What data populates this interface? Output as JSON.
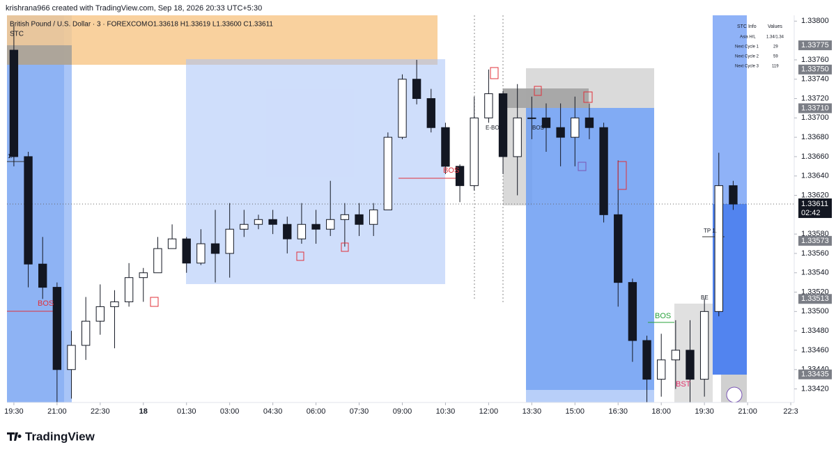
{
  "header": {
    "credit": "krishrana966 created with TradingView.com, Sep 18, 2026 20:33 UTC+5:30",
    "symbol": "British Pound / U.S. Dollar · 3 · FOREXCOM",
    "ohlc": "O1.33618  H1.33619  L1.33600  C1.33611",
    "indicator": "STC"
  },
  "footer": {
    "logo": "TradingView"
  },
  "stc_table": {
    "header": [
      "STC Info",
      "Values"
    ],
    "rows": [
      [
        "Asia H/L",
        "1.34/1.34"
      ],
      [
        "Next Cycle 1",
        29
      ],
      [
        "Next Cycle 2",
        59
      ],
      [
        "Next Cycle 3",
        119
      ]
    ]
  },
  "chart_data": {
    "type": "candlestick",
    "x": [
      19.5,
      20,
      20.5,
      21,
      21.5,
      22,
      22.5,
      23,
      23.5,
      24,
      24.5,
      25,
      25.5,
      26,
      26.5,
      27,
      27.5,
      28,
      28.5,
      29,
      29.5,
      30,
      30.5,
      31,
      31.5,
      32,
      32.5,
      33,
      33.5,
      34,
      34.5,
      35,
      35.5,
      36,
      36.5,
      37,
      37.5,
      38,
      38.5,
      39,
      39.5,
      40,
      40.5,
      41,
      41.5,
      42,
      42.5,
      43,
      43.5,
      44,
      44.5
    ],
    "open": [
      1.3377,
      1.3366,
      1.33549,
      1.33525,
      1.3344,
      1.33465,
      1.3349,
      1.33505,
      1.3351,
      1.33535,
      1.3354,
      1.33565,
      1.33575,
      1.3355,
      1.3357,
      1.3356,
      1.33585,
      1.3359,
      1.33595,
      1.3359,
      1.33575,
      1.3359,
      1.33585,
      1.33595,
      1.336,
      1.3359,
      1.33605,
      1.3368,
      1.3374,
      1.3372,
      1.3369,
      1.3365,
      1.3363,
      1.337,
      1.33725,
      1.3366,
      1.337,
      1.337,
      1.3369,
      1.3368,
      1.337,
      1.3369,
      1.336,
      1.3353,
      1.3347,
      1.3343,
      1.3345,
      1.3346,
      1.3343,
      1.335,
      1.3363
    ],
    "high": [
      1.33795,
      1.33665,
      1.33577,
      1.3353,
      1.3348,
      1.33515,
      1.33528,
      1.33522,
      1.3355,
      1.33545,
      1.33577,
      1.3359,
      1.33577,
      1.33585,
      1.33605,
      1.33612,
      1.33605,
      1.336,
      1.33605,
      1.33598,
      1.33612,
      1.33605,
      1.33635,
      1.33612,
      1.33612,
      1.33612,
      1.33685,
      1.33745,
      1.3376,
      1.3373,
      1.33695,
      1.33652,
      1.33722,
      1.3375,
      1.33728,
      1.33735,
      1.33722,
      1.33715,
      1.33715,
      1.33722,
      1.33715,
      1.33695,
      1.33656,
      1.33534,
      1.33475,
      1.33477,
      1.33491,
      1.33491,
      1.33513,
      1.33664,
      1.33635
    ],
    "low": [
      1.3365,
      1.33525,
      1.33513,
      1.33406,
      1.3341,
      1.3345,
      1.33476,
      1.33462,
      1.33505,
      1.3351,
      1.3354,
      1.33565,
      1.3354,
      1.33548,
      1.3353,
      1.33535,
      1.33577,
      1.33585,
      1.3358,
      1.3356,
      1.3357,
      1.3357,
      1.33578,
      1.33567,
      1.33578,
      1.33578,
      1.33605,
      1.33678,
      1.33714,
      1.33685,
      1.33642,
      1.33613,
      1.33625,
      1.33695,
      1.33642,
      1.3362,
      1.33678,
      1.33665,
      1.3365,
      1.3365,
      1.33678,
      1.33592,
      1.33505,
      1.33448,
      1.33406,
      1.33412,
      1.3342,
      1.33406,
      1.33412,
      1.33495,
      1.33605
    ],
    "close": [
      1.3366,
      1.33549,
      1.33525,
      1.3344,
      1.33465,
      1.3349,
      1.33505,
      1.3351,
      1.33535,
      1.3354,
      1.33565,
      1.33575,
      1.3355,
      1.3357,
      1.3356,
      1.33585,
      1.3359,
      1.33595,
      1.3359,
      1.33575,
      1.3359,
      1.33585,
      1.33595,
      1.336,
      1.3359,
      1.33605,
      1.3368,
      1.3374,
      1.3372,
      1.3369,
      1.3365,
      1.3363,
      1.337,
      1.33725,
      1.3366,
      1.337,
      1.337,
      1.3369,
      1.3368,
      1.337,
      1.3369,
      1.336,
      1.3353,
      1.3347,
      1.3343,
      1.3345,
      1.3346,
      1.3343,
      1.335,
      1.3363,
      1.33611
    ],
    "up_color": "#131722",
    "down_color": "#131722",
    "xlim": [
      19.26,
      46.62
    ],
    "xticks": [
      {
        "value": 19.5,
        "label": "19:30"
      },
      {
        "value": 21,
        "label": "21:00"
      },
      {
        "value": 22.5,
        "label": "22:30"
      },
      {
        "value": 24,
        "label": "18"
      },
      {
        "value": 25.5,
        "label": "01:30"
      },
      {
        "value": 27,
        "label": "03:00"
      },
      {
        "value": 28.5,
        "label": "04:30"
      },
      {
        "value": 30,
        "label": "06:00"
      },
      {
        "value": 31.5,
        "label": "07:30"
      },
      {
        "value": 33,
        "label": "09:00"
      },
      {
        "value": 34.5,
        "label": "10:30"
      },
      {
        "value": 36,
        "label": "12:00"
      },
      {
        "value": 37.5,
        "label": "13:30"
      },
      {
        "value": 39,
        "label": "15:00"
      },
      {
        "value": 40.5,
        "label": "16:30"
      },
      {
        "value": 42,
        "label": "18:00"
      },
      {
        "value": 43.5,
        "label": "19:30"
      },
      {
        "value": 45,
        "label": "21:00"
      },
      {
        "value": 46.5,
        "label": "22:3"
      }
    ],
    "ylim": [
      1.33406,
      1.33806
    ],
    "yticks": [
      {
        "value": 1.338,
        "label": "1.33800"
      },
      {
        "value": 1.3376,
        "label": "1.33760"
      },
      {
        "value": 1.3374,
        "label": "1.33740"
      },
      {
        "value": 1.3372,
        "label": "1.33720"
      },
      {
        "value": 1.337,
        "label": "1.33700"
      },
      {
        "value": 1.3368,
        "label": "1.33680"
      },
      {
        "value": 1.3366,
        "label": "1.33660"
      },
      {
        "value": 1.3364,
        "label": "1.33640"
      },
      {
        "value": 1.3362,
        "label": "1.33620"
      },
      {
        "value": 1.3358,
        "label": "1.33580"
      },
      {
        "value": 1.3356,
        "label": "1.33560"
      },
      {
        "value": 1.3354,
        "label": "1.33540"
      },
      {
        "value": 1.3352,
        "label": "1.33520"
      },
      {
        "value": 1.335,
        "label": "1.33500"
      },
      {
        "value": 1.3348,
        "label": "1.33480"
      },
      {
        "value": 1.3346,
        "label": "1.33460"
      },
      {
        "value": 1.3344,
        "label": "1.33440"
      },
      {
        "value": 1.3342,
        "label": "1.33420"
      }
    ],
    "price_labels": [
      {
        "value": 1.33775,
        "label": "1.33775"
      },
      {
        "value": 1.3375,
        "label": "1.33750"
      },
      {
        "value": 1.3371,
        "label": "1.33710"
      },
      {
        "value": 1.33573,
        "label": "1.33573"
      },
      {
        "value": 1.33513,
        "label": "1.33513"
      },
      {
        "value": 1.33435,
        "label": "1.33435"
      }
    ],
    "last_price": {
      "value": 1.33611,
      "label": "1.33611",
      "countdown": "02:42"
    },
    "annotations": [
      "BOS",
      "BOS",
      "E-BOS",
      "BOS",
      "BOS",
      "TP 1.",
      "BE",
      "BST",
      "1."
    ]
  }
}
